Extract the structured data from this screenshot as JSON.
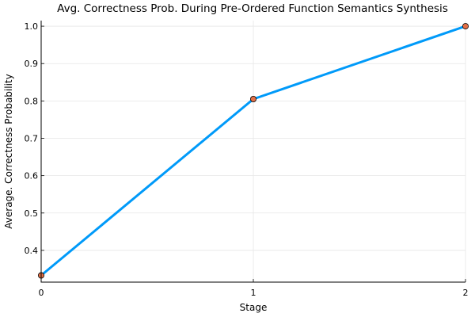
{
  "chart_data": {
    "type": "line",
    "title": "Avg. Correctness Prob. During Pre-Ordered Function Semantics Synthesis",
    "xlabel": "Stage",
    "ylabel": "Average. Correctness Probability",
    "x": [
      0,
      1,
      2
    ],
    "xticks": [
      "0",
      "1",
      "2"
    ],
    "yticks": [
      "0.4",
      "0.5",
      "0.6",
      "0.7",
      "0.8",
      "0.9",
      "1.0"
    ],
    "xlim": [
      0,
      2
    ],
    "ylim": [
      0.315,
      1.015
    ],
    "grid": true,
    "legend": "none",
    "series": [
      {
        "values": [
          0.333,
          0.805,
          1.0
        ],
        "color": "#009af9",
        "marker_color": "#e26f46"
      }
    ]
  }
}
